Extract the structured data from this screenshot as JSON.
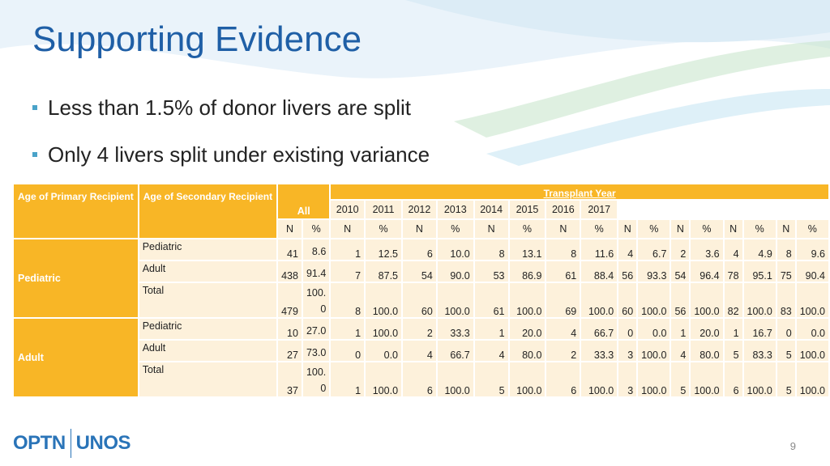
{
  "slide": {
    "title": "Supporting Evidence",
    "bullets": [
      "Less than 1.5% of donor livers are split",
      "Only 4 livers split under existing variance"
    ],
    "page_number": "9",
    "logo_left": "OPTN",
    "logo_right": "UNOS"
  },
  "colors": {
    "title": "#1f5fa6",
    "header": "#f8b626",
    "cell": "#fdf1db",
    "bullet": "#4aa3c9"
  },
  "table": {
    "h_primary": "Age of Primary Recipient",
    "h_secondary": "Age of Secondary Recipient",
    "h_all": "All",
    "h_transplant_year": "Transplant Year",
    "years": [
      "2010",
      "2011",
      "2012",
      "2013",
      "2014",
      "2015",
      "2016",
      "2017"
    ],
    "n_label": "N",
    "pct_label": "%",
    "groups": [
      {
        "label": "Pediatric",
        "rows": [
          {
            "label": "Pediatric",
            "cells": [
              "41",
              "8.6",
              "1",
              "12.5",
              "6",
              "10.0",
              "8",
              "13.1",
              "8",
              "11.6",
              "4",
              "6.7",
              "2",
              "3.6",
              "4",
              "4.9",
              "8",
              "9.6"
            ]
          },
          {
            "label": "Adult",
            "cells": [
              "438",
              "91.4",
              "7",
              "87.5",
              "54",
              "90.0",
              "53",
              "86.9",
              "61",
              "88.4",
              "56",
              "93.3",
              "54",
              "96.4",
              "78",
              "95.1",
              "75",
              "90.4"
            ]
          },
          {
            "label": "Total",
            "cells": [
              "479",
              "100.\n0",
              "8",
              "100.0",
              "60",
              "100.0",
              "61",
              "100.0",
              "69",
              "100.0",
              "60",
              "100.0",
              "56",
              "100.0",
              "82",
              "100.0",
              "83",
              "100.0"
            ]
          }
        ]
      },
      {
        "label": "Adult",
        "rows": [
          {
            "label": "Pediatric",
            "cells": [
              "10",
              "27.0",
              "1",
              "100.0",
              "2",
              "33.3",
              "1",
              "20.0",
              "4",
              "66.7",
              "0",
              "0.0",
              "1",
              "20.0",
              "1",
              "16.7",
              "0",
              "0.0"
            ]
          },
          {
            "label": "Adult",
            "cells": [
              "27",
              "73.0",
              "0",
              "0.0",
              "4",
              "66.7",
              "4",
              "80.0",
              "2",
              "33.3",
              "3",
              "100.0",
              "4",
              "80.0",
              "5",
              "83.3",
              "5",
              "100.0"
            ]
          },
          {
            "label": "Total",
            "cells": [
              "37",
              "100.\n0",
              "1",
              "100.0",
              "6",
              "100.0",
              "5",
              "100.0",
              "6",
              "100.0",
              "3",
              "100.0",
              "5",
              "100.0",
              "6",
              "100.0",
              "5",
              "100.0"
            ]
          }
        ]
      }
    ]
  }
}
